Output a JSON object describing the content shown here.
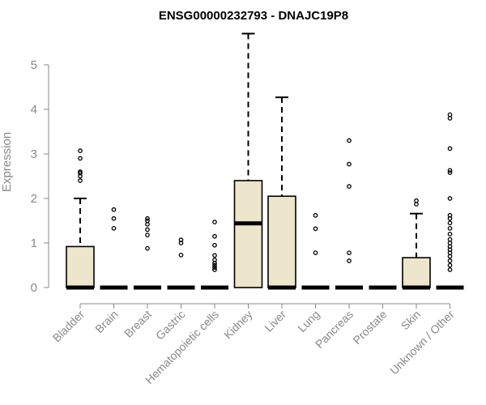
{
  "chart_data": {
    "type": "boxplot",
    "title": "ENSG00000232793 - DNAJC19P8",
    "xlabel": "",
    "ylabel": "Expression",
    "ylim": [
      0,
      5.7
    ],
    "yticks": [
      0,
      1,
      2,
      3,
      4,
      5
    ],
    "box_fill": "#ede5cc",
    "axis_color": "#888888",
    "categories": [
      "Bladder",
      "Brain",
      "Breast",
      "Gastric",
      "Hematopoietic cells",
      "Kidney",
      "Liver",
      "Lung",
      "Pancreas",
      "Prostate",
      "Skin",
      "Unknown / Other"
    ],
    "boxes": [
      {
        "name": "Bladder",
        "min": 0,
        "q1": 0,
        "median": 0,
        "q3": 0.92,
        "max": 2.0,
        "outliers": [
          2.4,
          2.5,
          2.57,
          2.6,
          2.9,
          3.07
        ]
      },
      {
        "name": "Brain",
        "min": 0,
        "q1": 0,
        "median": 0,
        "q3": 0,
        "max": 0,
        "outliers": [
          1.33,
          1.55,
          1.75
        ]
      },
      {
        "name": "Breast",
        "min": 0,
        "q1": 0,
        "median": 0,
        "q3": 0,
        "max": 0,
        "outliers": [
          0.88,
          1.18,
          1.3,
          1.42,
          1.5,
          1.55
        ]
      },
      {
        "name": "Gastric",
        "min": 0,
        "q1": 0,
        "median": 0,
        "q3": 0,
        "max": 0,
        "outliers": [
          0.73,
          1.0,
          1.07
        ]
      },
      {
        "name": "Hematopoietic cells",
        "min": 0,
        "q1": 0,
        "median": 0,
        "q3": 0,
        "max": 0,
        "outliers": [
          0.4,
          0.45,
          0.5,
          0.55,
          0.62,
          0.72,
          0.95,
          1.15,
          1.47
        ]
      },
      {
        "name": "Kidney",
        "min": 0,
        "q1": 0,
        "median": 1.44,
        "q3": 2.4,
        "max": 5.7,
        "outliers": []
      },
      {
        "name": "Liver",
        "min": 0,
        "q1": 0,
        "median": 0,
        "q3": 2.05,
        "max": 4.27,
        "outliers": []
      },
      {
        "name": "Lung",
        "min": 0,
        "q1": 0,
        "median": 0,
        "q3": 0,
        "max": 0,
        "outliers": [
          0.78,
          1.32,
          1.62
        ]
      },
      {
        "name": "Pancreas",
        "min": 0,
        "q1": 0,
        "median": 0,
        "q3": 0,
        "max": 0,
        "outliers": [
          0.6,
          0.78,
          2.27,
          2.77,
          3.3
        ]
      },
      {
        "name": "Prostate",
        "min": 0,
        "q1": 0,
        "median": 0,
        "q3": 0,
        "max": 0,
        "outliers": []
      },
      {
        "name": "Skin",
        "min": 0,
        "q1": 0,
        "median": 0,
        "q3": 0.67,
        "max": 1.66,
        "outliers": [
          1.87,
          1.95
        ]
      },
      {
        "name": "Unknown / Other",
        "min": 0,
        "q1": 0,
        "median": 0,
        "q3": 0,
        "max": 0,
        "outliers": [
          0.4,
          0.5,
          0.6,
          0.7,
          0.78,
          0.85,
          0.92,
          1.0,
          1.08,
          1.2,
          1.33,
          1.45,
          1.55,
          1.62,
          2.0,
          2.58,
          2.63,
          3.12,
          3.8,
          3.88
        ]
      }
    ]
  }
}
